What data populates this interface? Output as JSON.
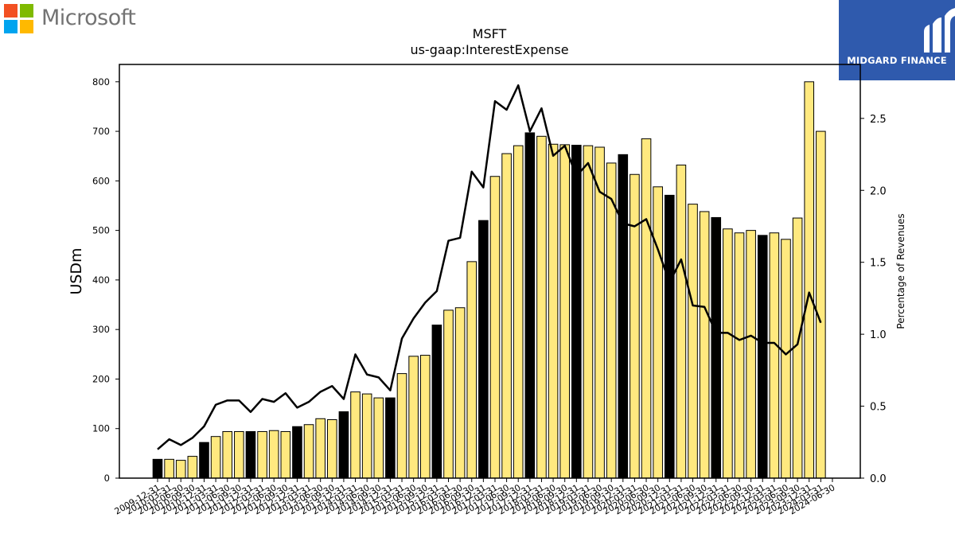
{
  "brand": {
    "company_logo_text": "Microsoft",
    "publisher_logo_text": "MIDGARD FINANCE",
    "ms_colors": [
      "#f25022",
      "#7fba00",
      "#00a4ef",
      "#ffb900"
    ],
    "publisher_color": "#2f5aad"
  },
  "chart_data": {
    "type": "bar",
    "title": "MSFT",
    "subtitle": "us-gaap:InterestExpense",
    "ylabel": "USDm",
    "y2label": "Percentage of Revenues",
    "ylim": [
      0,
      835
    ],
    "y2lim": [
      0,
      2.875
    ],
    "yticks": [
      0,
      100,
      200,
      300,
      400,
      500,
      600,
      700,
      800
    ],
    "y2ticks": [
      0.0,
      0.5,
      1.0,
      1.5,
      2.0,
      2.5
    ],
    "colors": {
      "annual_bar": "#000000",
      "quarter_bar": "#ffe97f",
      "line": "#000000"
    },
    "categories": [
      "2009-12-31",
      "2010-03-31",
      "2010-06-30",
      "2010-09-30",
      "2010-12-31",
      "2011-03-31",
      "2011-06-30",
      "2011-09-30",
      "2011-12-31",
      "2012-03-31",
      "2012-06-30",
      "2012-09-30",
      "2012-12-31",
      "2013-03-31",
      "2013-06-30",
      "2013-09-30",
      "2013-12-31",
      "2014-03-31",
      "2014-06-30",
      "2014-09-30",
      "2014-12-31",
      "2015-03-31",
      "2015-06-30",
      "2015-09-30",
      "2015-12-31",
      "2016-03-31",
      "2016-06-30",
      "2016-09-30",
      "2016-12-31",
      "2017-03-31",
      "2017-06-30",
      "2017-09-30",
      "2017-12-31",
      "2018-03-31",
      "2018-06-30",
      "2018-09-30",
      "2018-12-31",
      "2019-03-31",
      "2019-06-30",
      "2019-09-30",
      "2019-12-31",
      "2020-03-31",
      "2020-06-30",
      "2020-09-30",
      "2020-12-31",
      "2021-03-31",
      "2021-06-30",
      "2021-09-30",
      "2021-12-31",
      "2022-03-31",
      "2022-06-30",
      "2022-09-30",
      "2022-12-31",
      "2023-03-31",
      "2023-06-30",
      "2023-09-30",
      "2023-12-31",
      "2024-03-31",
      "2024-06-30"
    ],
    "series": [
      {
        "kind": "bar",
        "values": [
          38,
          38,
          36,
          44,
          72,
          84,
          94,
          94,
          94,
          94,
          96,
          94,
          104,
          108,
          120,
          118,
          134,
          174,
          170,
          162,
          162,
          211,
          246,
          248,
          309,
          339,
          344,
          437,
          520,
          609,
          655,
          671,
          697,
          690,
          674,
          673,
          672,
          671,
          668,
          636,
          653,
          613,
          685,
          588,
          571,
          632,
          553,
          538,
          526,
          503,
          495,
          500,
          490,
          495,
          482,
          525,
          800,
          700,
          null
        ],
        "annual": [
          true,
          false,
          false,
          false,
          true,
          false,
          false,
          false,
          true,
          false,
          false,
          false,
          true,
          false,
          false,
          false,
          true,
          false,
          false,
          false,
          true,
          false,
          false,
          false,
          true,
          false,
          false,
          false,
          true,
          false,
          false,
          false,
          true,
          false,
          false,
          false,
          true,
          false,
          false,
          false,
          true,
          false,
          false,
          false,
          true,
          false,
          false,
          false,
          true,
          false,
          false,
          false,
          true,
          false,
          false,
          false,
          false,
          false,
          false
        ]
      },
      {
        "kind": "line",
        "axis": "right",
        "values": [
          0.2,
          0.27,
          0.23,
          0.28,
          0.36,
          0.51,
          0.54,
          0.54,
          0.46,
          0.55,
          0.53,
          0.59,
          0.49,
          0.53,
          0.6,
          0.64,
          0.55,
          0.86,
          0.72,
          0.7,
          0.61,
          0.97,
          1.11,
          1.22,
          1.3,
          1.65,
          1.67,
          2.13,
          2.02,
          2.62,
          2.56,
          2.73,
          2.41,
          2.57,
          2.24,
          2.31,
          2.1,
          2.19,
          1.99,
          1.94,
          1.77,
          1.75,
          1.8,
          1.59,
          1.36,
          1.52,
          1.2,
          1.19,
          1.01,
          1.01,
          0.96,
          0.99,
          0.94,
          0.94,
          0.86,
          0.93,
          1.29,
          1.08,
          null
        ]
      }
    ]
  }
}
